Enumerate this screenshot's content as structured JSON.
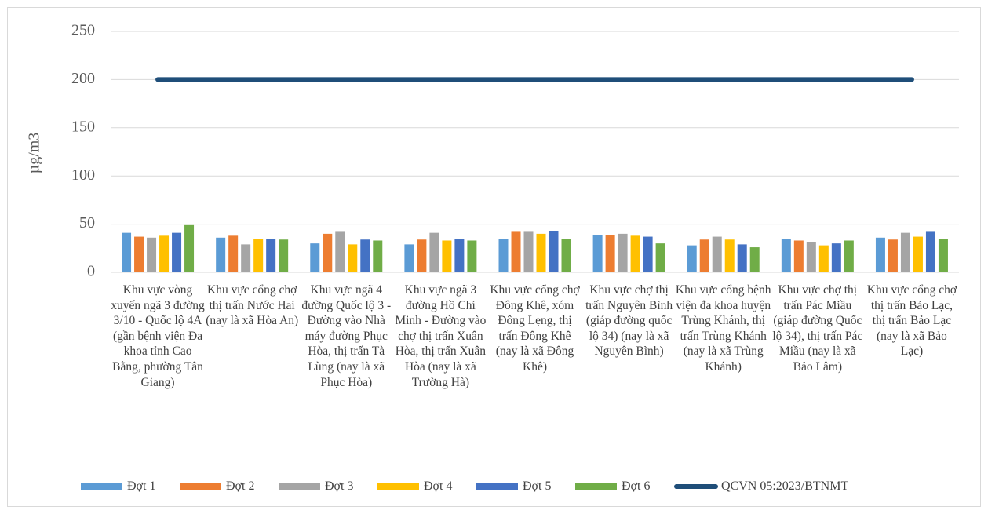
{
  "chart_data": {
    "type": "bar",
    "y_label": "µg/m3",
    "categories": [
      "Khu vực vòng xuyến ngã 3 đường 3/10 - Quốc lộ 4A (gần bệnh viện Đa khoa tỉnh Cao Bằng, phường Tân Giang)",
      "Khu vực cổng chợ thị trấn Nước Hai (nay là xã Hòa An)",
      "Khu vực ngã 4 đường Quốc lộ 3 - Đường vào Nhà máy đường Phục Hòa, thị trấn Tà Lùng (nay là xã Phục Hòa)",
      "Khu vực ngã 3 đường Hồ Chí Minh - Đường vào chợ thị trấn Xuân Hòa, thị trấn Xuân Hòa (nay là xã Trường Hà)",
      "Khu vực cổng chợ Đông Khê, xóm Đông Lẹng, thị trấn Đông Khê (nay là xã Đông Khê)",
      "Khu vực chợ thị trấn Nguyên Bình (giáp đường quốc lộ 34) (nay là xã Nguyên Bình)",
      "Khu vực cổng bệnh viện đa khoa huyện Trùng Khánh, thị trấn Trùng Khánh (nay là xã Trùng Khánh)",
      "Khu vực chợ thị trấn Pác Miầu (giáp đường Quốc lộ 34), thị trấn Pác Miầu (nay là xã Bảo Lâm)",
      "Khu vực cổng chợ thị trấn Bảo Lạc, thị trấn Bảo Lạc (nay là xã Bảo Lạc)"
    ],
    "series": [
      {
        "name": "Đợt 1",
        "color": "#5b9bd5",
        "values": [
          41,
          36,
          30,
          29,
          35,
          39,
          28,
          35,
          36
        ]
      },
      {
        "name": "Đợt 2",
        "color": "#ed7d31",
        "values": [
          37,
          38,
          40,
          34,
          42,
          39,
          34,
          33,
          34
        ]
      },
      {
        "name": "Đợt 3",
        "color": "#a5a5a5",
        "values": [
          36,
          29,
          42,
          41,
          42,
          40,
          37,
          31,
          41
        ]
      },
      {
        "name": "Đợt 4",
        "color": "#ffc000",
        "values": [
          38,
          35,
          29,
          33,
          40,
          38,
          34,
          28,
          37
        ]
      },
      {
        "name": "Đợt 5",
        "color": "#4472c4",
        "values": [
          41,
          35,
          34,
          35,
          43,
          37,
          29,
          30,
          42
        ]
      },
      {
        "name": "Đợt 6",
        "color": "#70ad47",
        "values": [
          49,
          34,
          33,
          33,
          35,
          30,
          26,
          33,
          35
        ]
      },
      {
        "name": "QCVN 05:2023/BTNMT",
        "color": "#1f4e79",
        "type": "line",
        "values": [
          200,
          200,
          200,
          200,
          200,
          200,
          200,
          200,
          200
        ]
      }
    ],
    "ylim": [
      0,
      250
    ],
    "yticks": [
      0,
      50,
      100,
      150,
      200,
      250
    ],
    "grid": true
  }
}
